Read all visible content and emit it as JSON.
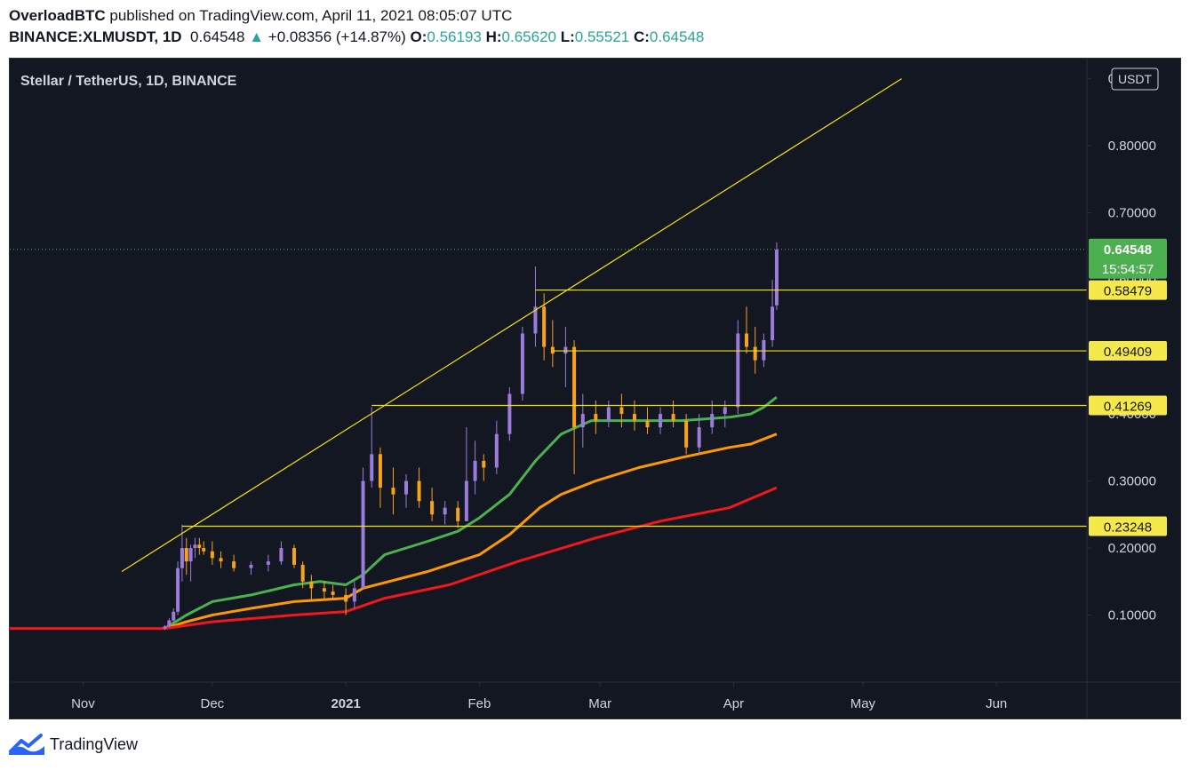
{
  "header": {
    "author": "OverloadBTC",
    "published_text": " published on TradingView.com, April 11, 2021 08:05:07 UTC",
    "symbol": "BINANCE:XLMUSDT, 1D",
    "last": "0.64548",
    "change": "+0.08356 (+14.87%)",
    "o_label": "O:",
    "o": "0.56193",
    "h_label": "H:",
    "h": "0.65620",
    "l_label": "L:",
    "l": "0.55521",
    "c_label": "C:",
    "c": "0.64548"
  },
  "chart_title": "Stellar / TetherUS, 1D, BINANCE",
  "currency_badge": "USDT",
  "footer": {
    "brand": "TradingView"
  },
  "colors": {
    "background": "#131722",
    "grid": "#2a2e39",
    "axis_text": "#d1d4dc",
    "trendline": "#f5e20e",
    "ma_fast": "#4caf50",
    "ma_mid": "#ff9800",
    "ma_slow": "#f2171b",
    "candle_up": "#9c7cdb",
    "candle_down": "#f7a21b",
    "last_price": "#4caf50",
    "level_label_bg": "#f5e84a"
  },
  "chart_data": {
    "type": "candlestick",
    "title": "Stellar / TetherUS, 1D, BINANCE",
    "ylabel": "USDT",
    "ylim": [
      0.0,
      0.93
    ],
    "y_ticks": [
      {
        "value": 0.1,
        "label": "0.10000"
      },
      {
        "value": 0.2,
        "label": "0.20000"
      },
      {
        "value": 0.3,
        "label": "0.30000"
      },
      {
        "value": 0.4,
        "label": "0.40000"
      },
      {
        "value": 0.5,
        "label": "0.50000"
      },
      {
        "value": 0.6,
        "label": "0.60000"
      },
      {
        "value": 0.7,
        "label": "0.70000"
      },
      {
        "value": 0.8,
        "label": "0.80000"
      },
      {
        "value": 0.9,
        "label": "0.90000"
      }
    ],
    "x_range": [
      "2020-10-15",
      "2021-06-22"
    ],
    "x_ticks": [
      {
        "date": "2020-11-01",
        "label": "Nov",
        "bold": false
      },
      {
        "date": "2020-12-01",
        "label": "Dec",
        "bold": false
      },
      {
        "date": "2021-01-01",
        "label": "2021",
        "bold": true
      },
      {
        "date": "2021-02-01",
        "label": "Feb",
        "bold": false
      },
      {
        "date": "2021-03-01",
        "label": "Mar",
        "bold": false
      },
      {
        "date": "2021-04-01",
        "label": "Apr",
        "bold": false
      },
      {
        "date": "2021-05-01",
        "label": "May",
        "bold": false
      },
      {
        "date": "2021-06-01",
        "label": "Jun",
        "bold": false
      }
    ],
    "last_price": {
      "value": 0.64548,
      "label": "0.64548",
      "countdown": "15:54:57"
    },
    "levels": [
      {
        "value": 0.58479,
        "label": "0.58479",
        "from": "2021-02-14"
      },
      {
        "value": 0.49409,
        "label": "0.49409",
        "from": "2021-02-18"
      },
      {
        "value": 0.41269,
        "label": "0.41269",
        "from": "2021-01-07"
      },
      {
        "value": 0.23248,
        "label": "0.23248",
        "from": "2020-11-24"
      }
    ],
    "trendline": {
      "from": {
        "date": "2020-11-10",
        "value": 0.165
      },
      "to": {
        "date": "2021-05-10",
        "value": 0.9
      }
    },
    "series": [
      {
        "name": "",
        "color": "#4caf50",
        "points": [
          [
            "2020-11-20",
            0.08
          ],
          [
            "2020-11-25",
            0.1
          ],
          [
            "2020-12-01",
            0.12
          ],
          [
            "2020-12-10",
            0.13
          ],
          [
            "2020-12-20",
            0.145
          ],
          [
            "2020-12-26",
            0.15
          ],
          [
            "2021-01-01",
            0.145
          ],
          [
            "2021-01-05",
            0.16
          ],
          [
            "2021-01-10",
            0.19
          ],
          [
            "2021-01-20",
            0.21
          ],
          [
            "2021-01-27",
            0.225
          ],
          [
            "2021-02-01",
            0.245
          ],
          [
            "2021-02-08",
            0.28
          ],
          [
            "2021-02-14",
            0.33
          ],
          [
            "2021-02-20",
            0.37
          ],
          [
            "2021-02-27",
            0.39
          ],
          [
            "2021-03-10",
            0.39
          ],
          [
            "2021-03-20",
            0.39
          ],
          [
            "2021-03-31",
            0.395
          ],
          [
            "2021-04-05",
            0.4
          ],
          [
            "2021-04-08",
            0.41
          ],
          [
            "2021-04-11",
            0.425
          ]
        ]
      },
      {
        "name": "",
        "color": "#ff9800",
        "points": [
          [
            "2020-11-20",
            0.08
          ],
          [
            "2020-11-25",
            0.09
          ],
          [
            "2020-12-01",
            0.1
          ],
          [
            "2020-12-10",
            0.11
          ],
          [
            "2020-12-20",
            0.12
          ],
          [
            "2021-01-01",
            0.125
          ],
          [
            "2021-01-05",
            0.14
          ],
          [
            "2021-01-20",
            0.165
          ],
          [
            "2021-02-01",
            0.19
          ],
          [
            "2021-02-08",
            0.22
          ],
          [
            "2021-02-15",
            0.26
          ],
          [
            "2021-02-20",
            0.28
          ],
          [
            "2021-02-28",
            0.3
          ],
          [
            "2021-03-10",
            0.32
          ],
          [
            "2021-03-20",
            0.335
          ],
          [
            "2021-03-31",
            0.35
          ],
          [
            "2021-04-05",
            0.355
          ],
          [
            "2021-04-11",
            0.37
          ]
        ]
      },
      {
        "name": "",
        "color": "#f2171b",
        "points": [
          [
            "2020-10-15",
            0.08
          ],
          [
            "2020-11-20",
            0.08
          ],
          [
            "2020-12-01",
            0.09
          ],
          [
            "2020-12-20",
            0.1
          ],
          [
            "2021-01-01",
            0.105
          ],
          [
            "2021-01-10",
            0.125
          ],
          [
            "2021-01-25",
            0.145
          ],
          [
            "2021-02-10",
            0.18
          ],
          [
            "2021-02-28",
            0.215
          ],
          [
            "2021-03-15",
            0.24
          ],
          [
            "2021-03-31",
            0.26
          ],
          [
            "2021-04-11",
            0.29
          ]
        ]
      }
    ],
    "candles": [
      [
        "2020-11-20",
        0.08,
        0.085,
        0.078,
        0.083
      ],
      [
        "2020-11-21",
        0.083,
        0.095,
        0.082,
        0.092
      ],
      [
        "2020-11-22",
        0.092,
        0.11,
        0.09,
        0.105
      ],
      [
        "2020-11-23",
        0.105,
        0.18,
        0.1,
        0.17
      ],
      [
        "2020-11-24",
        0.17,
        0.235,
        0.15,
        0.2
      ],
      [
        "2020-11-25",
        0.2,
        0.215,
        0.16,
        0.18
      ],
      [
        "2020-11-26",
        0.18,
        0.205,
        0.15,
        0.2
      ],
      [
        "2020-11-27",
        0.2,
        0.215,
        0.185,
        0.205
      ],
      [
        "2020-11-28",
        0.205,
        0.215,
        0.19,
        0.2
      ],
      [
        "2020-11-29",
        0.2,
        0.21,
        0.19,
        0.195
      ],
      [
        "2020-12-01",
        0.195,
        0.21,
        0.175,
        0.185
      ],
      [
        "2020-12-03",
        0.185,
        0.195,
        0.17,
        0.18
      ],
      [
        "2020-12-06",
        0.18,
        0.19,
        0.165,
        0.17
      ],
      [
        "2020-12-10",
        0.17,
        0.18,
        0.16,
        0.175
      ],
      [
        "2020-12-14",
        0.175,
        0.19,
        0.165,
        0.18
      ],
      [
        "2020-12-17",
        0.18,
        0.21,
        0.175,
        0.2
      ],
      [
        "2020-12-20",
        0.2,
        0.205,
        0.17,
        0.175
      ],
      [
        "2020-12-22",
        0.175,
        0.18,
        0.14,
        0.15
      ],
      [
        "2020-12-24",
        0.15,
        0.16,
        0.12,
        0.14
      ],
      [
        "2020-12-27",
        0.14,
        0.15,
        0.125,
        0.135
      ],
      [
        "2020-12-29",
        0.135,
        0.145,
        0.125,
        0.13
      ],
      [
        "2021-01-01",
        0.13,
        0.14,
        0.1,
        0.12
      ],
      [
        "2021-01-03",
        0.12,
        0.15,
        0.11,
        0.14
      ],
      [
        "2021-01-05",
        0.14,
        0.32,
        0.14,
        0.3
      ],
      [
        "2021-01-07",
        0.3,
        0.41,
        0.29,
        0.34
      ],
      [
        "2021-01-09",
        0.34,
        0.35,
        0.26,
        0.29
      ],
      [
        "2021-01-12",
        0.29,
        0.32,
        0.25,
        0.28
      ],
      [
        "2021-01-15",
        0.28,
        0.31,
        0.26,
        0.3
      ],
      [
        "2021-01-18",
        0.3,
        0.32,
        0.26,
        0.27
      ],
      [
        "2021-01-21",
        0.27,
        0.29,
        0.24,
        0.25
      ],
      [
        "2021-01-24",
        0.25,
        0.27,
        0.235,
        0.26
      ],
      [
        "2021-01-27",
        0.26,
        0.27,
        0.23,
        0.24
      ],
      [
        "2021-01-29",
        0.24,
        0.38,
        0.24,
        0.3
      ],
      [
        "2021-01-31",
        0.3,
        0.36,
        0.28,
        0.33
      ],
      [
        "2021-02-02",
        0.33,
        0.34,
        0.3,
        0.32
      ],
      [
        "2021-02-05",
        0.32,
        0.39,
        0.31,
        0.37
      ],
      [
        "2021-02-08",
        0.37,
        0.44,
        0.36,
        0.43
      ],
      [
        "2021-02-11",
        0.43,
        0.53,
        0.42,
        0.52
      ],
      [
        "2021-02-14",
        0.52,
        0.62,
        0.5,
        0.56
      ],
      [
        "2021-02-16",
        0.56,
        0.58,
        0.48,
        0.5
      ],
      [
        "2021-02-18",
        0.5,
        0.54,
        0.47,
        0.49
      ],
      [
        "2021-02-21",
        0.49,
        0.53,
        0.44,
        0.5
      ],
      [
        "2021-02-23",
        0.5,
        0.51,
        0.31,
        0.38
      ],
      [
        "2021-02-25",
        0.38,
        0.43,
        0.35,
        0.4
      ],
      [
        "2021-02-28",
        0.4,
        0.42,
        0.37,
        0.39
      ],
      [
        "2021-03-03",
        0.39,
        0.42,
        0.38,
        0.41
      ],
      [
        "2021-03-06",
        0.41,
        0.43,
        0.38,
        0.4
      ],
      [
        "2021-03-09",
        0.4,
        0.42,
        0.375,
        0.39
      ],
      [
        "2021-03-12",
        0.39,
        0.41,
        0.37,
        0.38
      ],
      [
        "2021-03-15",
        0.38,
        0.41,
        0.37,
        0.4
      ],
      [
        "2021-03-18",
        0.4,
        0.42,
        0.38,
        0.39
      ],
      [
        "2021-03-21",
        0.39,
        0.4,
        0.34,
        0.35
      ],
      [
        "2021-03-24",
        0.35,
        0.4,
        0.34,
        0.38
      ],
      [
        "2021-03-27",
        0.38,
        0.42,
        0.37,
        0.4
      ],
      [
        "2021-03-30",
        0.4,
        0.42,
        0.38,
        0.41
      ],
      [
        "2021-04-02",
        0.41,
        0.54,
        0.4,
        0.52
      ],
      [
        "2021-04-04",
        0.52,
        0.56,
        0.49,
        0.5
      ],
      [
        "2021-04-06",
        0.5,
        0.53,
        0.46,
        0.48
      ],
      [
        "2021-04-08",
        0.48,
        0.52,
        0.47,
        0.51
      ],
      [
        "2021-04-10",
        0.51,
        0.6,
        0.5,
        0.56
      ],
      [
        "2021-04-11",
        0.562,
        0.656,
        0.555,
        0.645
      ]
    ]
  }
}
